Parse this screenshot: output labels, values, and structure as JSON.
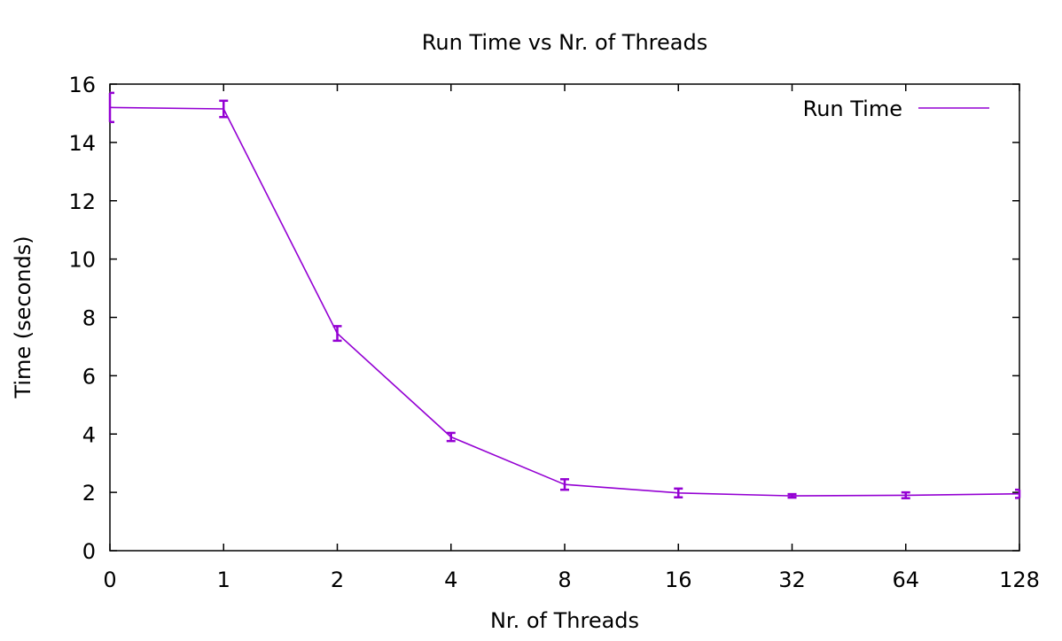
{
  "chart_data": {
    "type": "line",
    "title": "Run Time vs Nr. of Threads",
    "xlabel": "Nr. of Threads",
    "ylabel": "Time (seconds)",
    "categories": [
      "0",
      "1",
      "2",
      "4",
      "8",
      "16",
      "32",
      "64",
      "128"
    ],
    "ylim": [
      0,
      16
    ],
    "yticks": [
      0,
      2,
      4,
      6,
      8,
      10,
      12,
      14,
      16
    ],
    "grid": false,
    "legend_position": "top-right",
    "series": [
      {
        "name": "Run Time",
        "color": "#9400d3",
        "values": [
          15.2,
          15.15,
          7.45,
          3.9,
          2.27,
          1.98,
          1.88,
          1.9,
          1.95
        ],
        "errors": [
          0.5,
          0.28,
          0.25,
          0.14,
          0.18,
          0.15,
          0.06,
          0.1,
          0.14
        ]
      }
    ]
  }
}
